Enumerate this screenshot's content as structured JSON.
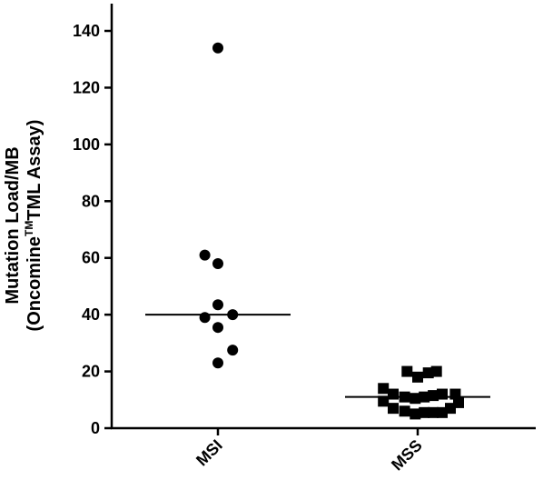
{
  "chart_data": {
    "type": "scatter",
    "ylabel_line1": "Mutation Load/MB",
    "ylabel_line2_pre": "(Oncomine",
    "ylabel_line2_tm": "TM",
    "ylabel_line2_post": "TML Assay)",
    "xlabel": "",
    "ylim": [
      0,
      150
    ],
    "yticks": [
      0,
      20,
      40,
      60,
      80,
      100,
      120,
      140
    ],
    "categories": [
      "MSI",
      "MSS"
    ],
    "grid": false,
    "legend": "none",
    "series": [
      {
        "category": "MSI",
        "marker": "circle",
        "median": 40,
        "points": [
          {
            "pos": 0.0,
            "y": 134
          },
          {
            "pos": -0.16,
            "y": 61
          },
          {
            "pos": 0.0,
            "y": 58
          },
          {
            "pos": -0.16,
            "y": 39
          },
          {
            "pos": 0.0,
            "y": 43.5
          },
          {
            "pos": 0.18,
            "y": 40
          },
          {
            "pos": 0.0,
            "y": 35.5
          },
          {
            "pos": 0.18,
            "y": 27.5
          },
          {
            "pos": 0.0,
            "y": 23
          }
        ]
      },
      {
        "category": "MSS",
        "marker": "square",
        "median": 11,
        "points": [
          {
            "pos": -0.13,
            "y": 20
          },
          {
            "pos": 0.13,
            "y": 19.5
          },
          {
            "pos": 0.23,
            "y": 20
          },
          {
            "pos": 0.0,
            "y": 18
          },
          {
            "pos": -0.42,
            "y": 14
          },
          {
            "pos": -0.42,
            "y": 9.5
          },
          {
            "pos": -0.3,
            "y": 12
          },
          {
            "pos": -0.3,
            "y": 7
          },
          {
            "pos": -0.16,
            "y": 11
          },
          {
            "pos": -0.16,
            "y": 6
          },
          {
            "pos": -0.03,
            "y": 10.5
          },
          {
            "pos": -0.03,
            "y": 5
          },
          {
            "pos": 0.08,
            "y": 11
          },
          {
            "pos": 0.08,
            "y": 5.5
          },
          {
            "pos": 0.19,
            "y": 11.5
          },
          {
            "pos": 0.19,
            "y": 5.5
          },
          {
            "pos": 0.3,
            "y": 12
          },
          {
            "pos": 0.3,
            "y": 5.5
          },
          {
            "pos": 0.4,
            "y": 7
          },
          {
            "pos": 0.46,
            "y": 12
          },
          {
            "pos": 0.5,
            "y": 9
          }
        ]
      }
    ]
  }
}
